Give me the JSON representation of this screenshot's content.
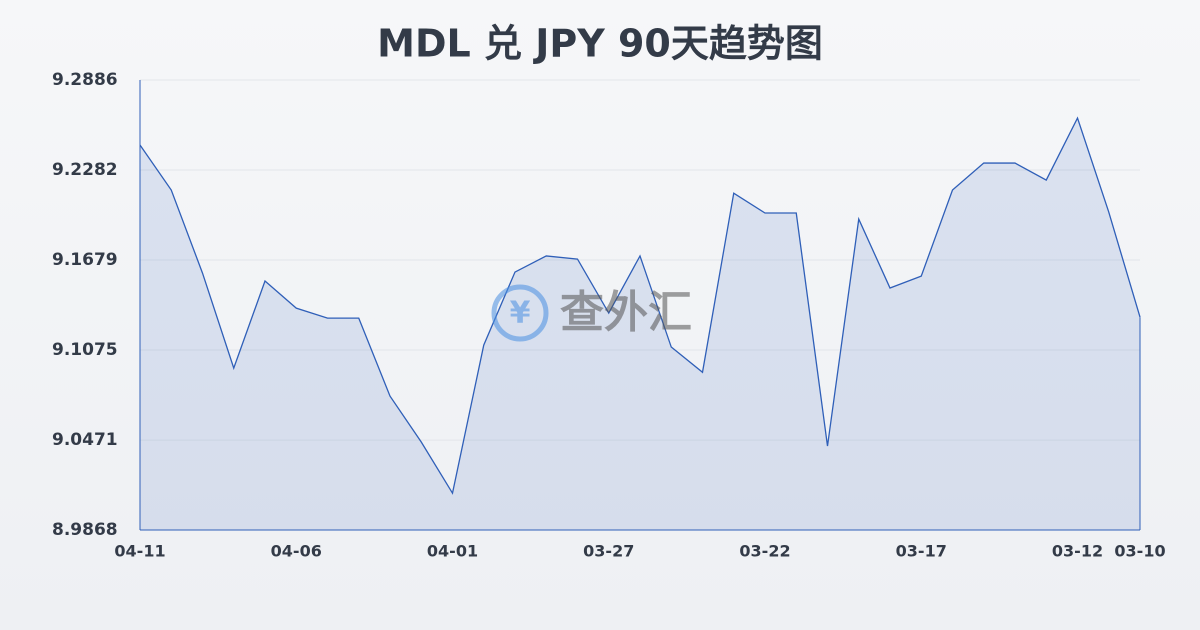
{
  "chart_data": {
    "type": "line",
    "title": "MDL 兑 JPY 90天趋势图",
    "watermark": "查外汇",
    "categories": [
      "04-11",
      null,
      null,
      null,
      null,
      "04-06",
      null,
      null,
      null,
      null,
      "04-01",
      null,
      null,
      null,
      null,
      "03-27",
      null,
      null,
      null,
      null,
      "03-22",
      null,
      null,
      null,
      null,
      "03-17",
      null,
      null,
      null,
      null,
      "03-12",
      null,
      "03-10"
    ],
    "values": [
      9.245,
      9.2148,
      9.1591,
      9.0954,
      9.1538,
      9.1356,
      9.1289,
      9.1289,
      9.0766,
      9.0458,
      9.0115,
      9.1108,
      9.1598,
      9.1706,
      9.1685,
      9.1323,
      9.1706,
      9.1095,
      9.0926,
      9.2127,
      9.1994,
      9.1994,
      9.0431,
      9.1953,
      9.1491,
      9.1571,
      9.2148,
      9.2329,
      9.2329,
      9.2215,
      9.2631,
      9.2,
      9.1296
    ],
    "color": "#2f5fb8",
    "ylim": [
      8.9868,
      9.2886
    ],
    "yticks": [
      8.9868,
      9.0471,
      9.1075,
      9.1679,
      9.2282,
      9.2886
    ],
    "grid": true
  }
}
